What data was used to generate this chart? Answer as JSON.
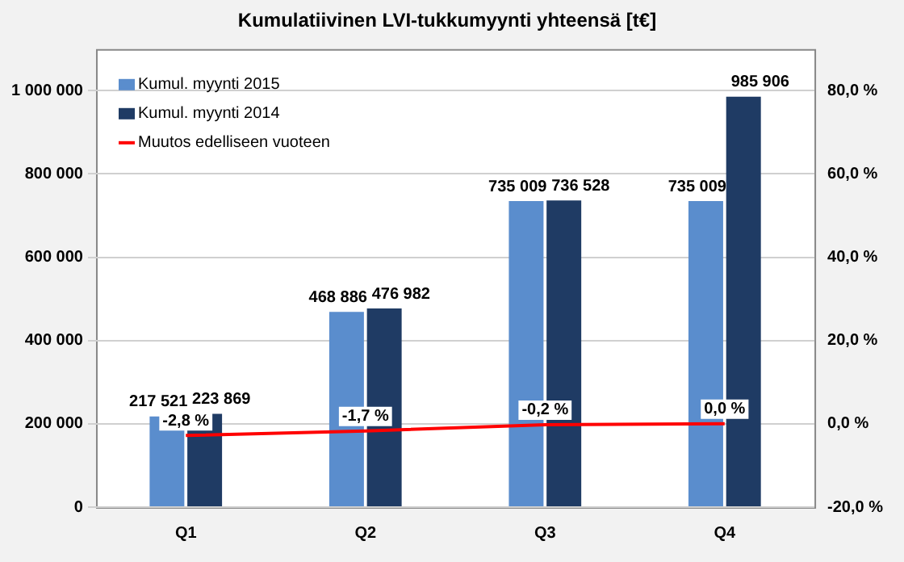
{
  "chart_data": {
    "type": "bar",
    "title": "Kumulatiivinen LVI-tukkumyynti yhteensä [t€]",
    "categories": [
      "Q1",
      "Q2",
      "Q3",
      "Q4"
    ],
    "series": [
      {
        "name": "Kumul. myynti 2015",
        "color": "#5a8dcd",
        "values": [
          217521,
          468886,
          735009,
          735009
        ],
        "value_labels": [
          "217 521",
          "468 886",
          "735 009",
          "735 009"
        ]
      },
      {
        "name": "Kumul. myynti 2014",
        "color": "#1f3b64",
        "values": [
          223869,
          476982,
          736528,
          985906
        ],
        "value_labels": [
          "223 869",
          "476 982",
          "736 528",
          "985 906"
        ]
      },
      {
        "name": "Muutos edelliseen vuoteen",
        "type": "line",
        "axis": "y2",
        "color": "#ff0000",
        "values": [
          -2.8,
          -1.7,
          -0.2,
          0.0
        ],
        "value_labels": [
          "-2,8 %",
          "-1,7 %",
          "-0,2 %",
          "0,0 %"
        ]
      }
    ],
    "ylim": [
      0,
      1100000
    ],
    "yticks": [
      {
        "value": 0,
        "label": "0"
      },
      {
        "value": 200000,
        "label": "200 000"
      },
      {
        "value": 400000,
        "label": "400 000"
      },
      {
        "value": 600000,
        "label": "600 000"
      },
      {
        "value": 800000,
        "label": "800 000"
      },
      {
        "value": 1000000,
        "label": "1 000 000"
      }
    ],
    "y2lim": [
      -20,
      90
    ],
    "y2ticks": [
      {
        "value": -20,
        "label": "-20,0 %"
      },
      {
        "value": 0,
        "label": "0,0 %"
      },
      {
        "value": 20,
        "label": "20,0 %"
      },
      {
        "value": 40,
        "label": "40,0 %"
      },
      {
        "value": 60,
        "label": "60,0 %"
      },
      {
        "value": 80,
        "label": "80,0 %"
      }
    ],
    "grid": "y",
    "legend": "top left",
    "marker": "none"
  }
}
